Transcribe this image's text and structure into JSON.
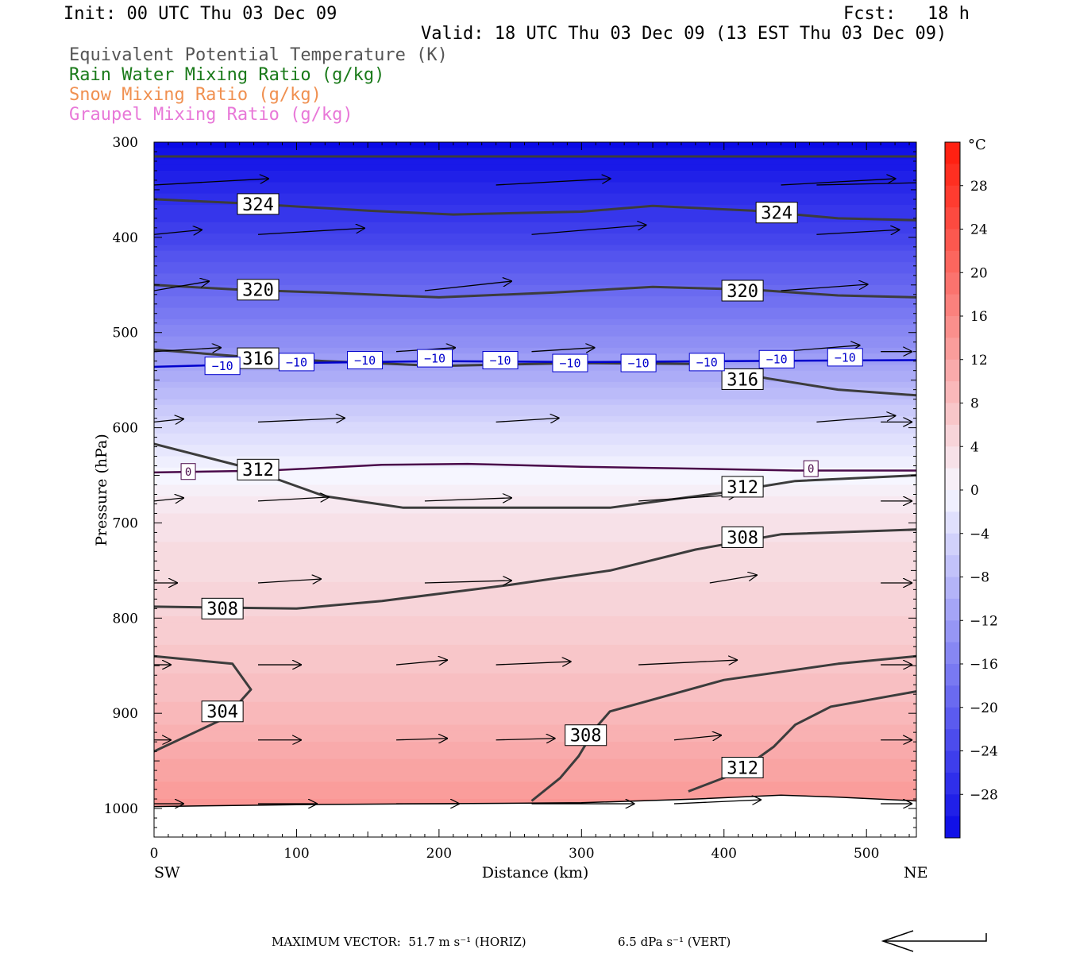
{
  "header": {
    "init": "Init: 00 UTC Thu 03 Dec 09",
    "fcst": "Fcst:   18 h",
    "valid": "Valid: 18 UTC Thu 03 Dec 09 (13 EST Thu 03 Dec 09)",
    "legend": [
      {
        "label": "Equivalent Potential Temperature (K)",
        "color": "#555555"
      },
      {
        "label": "Rain Water Mixing Ratio (g/kg)",
        "color": "#1a7a1a"
      },
      {
        "label": "Snow Mixing Ratio (g/kg)",
        "color": "#f09050"
      },
      {
        "label": "Graupel Mixing Ratio (g/kg)",
        "color": "#e878d8"
      }
    ]
  },
  "footer": {
    "max_vector_horiz": "MAXIMUM VECTOR:  51.7 m s⁻¹ (HORIZ)",
    "max_vector_vert": "6.5 dPa s⁻¹ (VERT)"
  },
  "chart_data": {
    "type": "heatmap",
    "title": "",
    "xlabel": "Distance (km)",
    "ylabel": "Pressure (hPa)",
    "xlim": [
      0,
      535
    ],
    "ylim": [
      1030,
      300
    ],
    "x_ticks": [
      0,
      100,
      200,
      300,
      400,
      500
    ],
    "y_ticks": [
      300,
      400,
      500,
      600,
      700,
      800,
      900,
      1000
    ],
    "x_left_label": "SW",
    "x_right_label": "NE",
    "colorbar": {
      "unit": "°C",
      "tick_labels": [
        "28",
        "24",
        "20",
        "16",
        "12",
        "8",
        "4",
        "0",
        "−4",
        "−8",
        "−12",
        "−16",
        "−20",
        "−24",
        "−28"
      ],
      "tick_values": [
        28,
        24,
        20,
        16,
        12,
        8,
        4,
        0,
        -4,
        -8,
        -12,
        -16,
        -20,
        -24,
        -28
      ],
      "range": [
        -32,
        32
      ],
      "cold_color": "#0a0ae6",
      "warm_color": "#ff1a0a",
      "neutral_color": "#f6f6ff"
    },
    "temperature_profile": {
      "pressure": [
        300,
        400,
        500,
        600,
        650,
        700,
        800,
        900,
        1000
      ],
      "temperature": [
        -32,
        -24,
        -15,
        -4,
        0,
        3,
        5.5,
        9,
        14
      ]
    },
    "theta_e_contours": [
      {
        "value": 324,
        "points": [
          [
            0,
            315
          ],
          [
            535,
            315
          ]
        ]
      },
      {
        "value": 324,
        "points": [
          [
            0,
            360
          ],
          [
            60,
            364
          ],
          [
            150,
            372
          ],
          [
            210,
            376
          ],
          [
            300,
            373
          ],
          [
            350,
            367
          ],
          [
            420,
            372
          ],
          [
            480,
            380
          ],
          [
            535,
            382
          ]
        ]
      },
      {
        "value": 320,
        "points": [
          [
            0,
            450
          ],
          [
            60,
            455
          ],
          [
            120,
            458
          ],
          [
            200,
            463
          ],
          [
            280,
            458
          ],
          [
            350,
            452
          ],
          [
            420,
            455
          ],
          [
            480,
            461
          ],
          [
            535,
            463
          ]
        ]
      },
      {
        "value": 316,
        "points": [
          [
            0,
            518
          ],
          [
            60,
            525
          ],
          [
            120,
            530
          ],
          [
            200,
            535
          ],
          [
            300,
            532
          ],
          [
            380,
            533
          ],
          [
            430,
            548
          ],
          [
            480,
            560
          ],
          [
            535,
            566
          ]
        ]
      },
      {
        "value": 312,
        "points": [
          [
            0,
            617
          ],
          [
            60,
            640
          ],
          [
            120,
            672
          ],
          [
            175,
            684
          ],
          [
            250,
            684
          ],
          [
            320,
            684
          ],
          [
            400,
            668
          ],
          [
            450,
            656
          ],
          [
            535,
            650
          ]
        ]
      },
      {
        "value": 308,
        "points": [
          [
            0,
            788
          ],
          [
            100,
            790
          ],
          [
            160,
            782
          ],
          [
            250,
            765
          ],
          [
            320,
            750
          ],
          [
            380,
            728
          ],
          [
            440,
            712
          ],
          [
            535,
            707
          ]
        ]
      },
      {
        "value": 304,
        "points": [
          [
            0,
            840
          ],
          [
            55,
            848
          ],
          [
            68,
            875
          ],
          [
            50,
            905
          ],
          [
            0,
            940
          ]
        ]
      },
      {
        "value": 308,
        "points": [
          [
            265,
            992
          ],
          [
            285,
            968
          ],
          [
            298,
            945
          ],
          [
            310,
            915
          ],
          [
            320,
            898
          ],
          [
            400,
            865
          ],
          [
            480,
            848
          ],
          [
            535,
            840
          ]
        ]
      },
      {
        "value": 312,
        "points": [
          [
            375,
            982
          ],
          [
            410,
            962
          ],
          [
            435,
            935
          ],
          [
            450,
            912
          ],
          [
            475,
            893
          ],
          [
            535,
            877
          ]
        ]
      }
    ],
    "theta_e_labels": [
      {
        "text": "324",
        "x": 73,
        "p": 365
      },
      {
        "text": "324",
        "x": 437,
        "p": 374
      },
      {
        "text": "320",
        "x": 73,
        "p": 455
      },
      {
        "text": "320",
        "x": 413,
        "p": 456
      },
      {
        "text": "316",
        "x": 73,
        "p": 527
      },
      {
        "text": "316",
        "x": 413,
        "p": 549
      },
      {
        "text": "312",
        "x": 73,
        "p": 644
      },
      {
        "text": "312",
        "x": 413,
        "p": 662
      },
      {
        "text": "308",
        "x": 413,
        "p": 715
      },
      {
        "text": "308",
        "x": 48,
        "p": 790
      },
      {
        "text": "304",
        "x": 48,
        "p": 898
      },
      {
        "text": "308",
        "x": 303,
        "p": 923
      },
      {
        "text": "312",
        "x": 413,
        "p": 957
      }
    ],
    "isotherms": [
      {
        "value": -10,
        "color": "#0000cc",
        "points": [
          [
            0,
            536
          ],
          [
            100,
            532
          ],
          [
            200,
            530
          ],
          [
            300,
            531
          ],
          [
            400,
            530
          ],
          [
            535,
            529
          ]
        ]
      },
      {
        "value": 0,
        "color": "#4a0a4a",
        "points": [
          [
            0,
            647
          ],
          [
            80,
            645
          ],
          [
            160,
            639
          ],
          [
            220,
            638
          ],
          [
            300,
            641
          ],
          [
            380,
            643
          ],
          [
            450,
            645
          ],
          [
            535,
            645
          ]
        ]
      }
    ],
    "isotherm_labels": [
      {
        "text": "−10",
        "x": 48,
        "p": 535
      },
      {
        "text": "−10",
        "x": 100,
        "p": 531
      },
      {
        "text": "−10",
        "x": 148,
        "p": 529
      },
      {
        "text": "−10",
        "x": 197,
        "p": 527
      },
      {
        "text": "−10",
        "x": 243,
        "p": 529
      },
      {
        "text": "−10",
        "x": 292,
        "p": 532
      },
      {
        "text": "−10",
        "x": 340,
        "p": 532
      },
      {
        "text": "−10",
        "x": 388,
        "p": 531
      },
      {
        "text": "−10",
        "x": 437,
        "p": 528
      },
      {
        "text": "−10",
        "x": 485,
        "p": 526
      },
      {
        "text": "0",
        "x": 24,
        "p": 646
      },
      {
        "text": "0",
        "x": 461,
        "p": 643
      }
    ],
    "surface_pressure": {
      "points": [
        [
          0,
          998
        ],
        [
          100,
          996
        ],
        [
          200,
          995
        ],
        [
          300,
          994
        ],
        [
          380,
          990
        ],
        [
          440,
          986
        ],
        [
          480,
          988
        ],
        [
          535,
          992
        ]
      ]
    },
    "wind_vectors": [
      {
        "p": 345,
        "cols": [
          [
            0,
            145,
            -8
          ],
          [
            240,
            145,
            -8
          ],
          [
            440,
            145,
            -8
          ],
          [
            465,
            180,
            -4
          ]
        ]
      },
      {
        "p": 397,
        "cols": [
          [
            0,
            61,
            -6
          ],
          [
            73,
            135,
            -8
          ],
          [
            265,
            145,
            -12
          ],
          [
            465,
            105,
            -6
          ]
        ]
      },
      {
        "p": 456,
        "cols": [
          [
            0,
            70,
            -12
          ],
          [
            190,
            110,
            -12
          ],
          [
            440,
            110,
            -8
          ]
        ]
      },
      {
        "p": 520,
        "cols": [
          [
            0,
            85,
            -5
          ],
          [
            170,
            75,
            -5
          ],
          [
            265,
            80,
            -5
          ],
          [
            440,
            100,
            -8
          ],
          [
            510,
            40,
            0
          ]
        ]
      },
      {
        "p": 594,
        "cols": [
          [
            0,
            38,
            -4
          ],
          [
            73,
            110,
            -5
          ],
          [
            240,
            80,
            -5
          ],
          [
            465,
            100,
            -8
          ],
          [
            510,
            40,
            0
          ]
        ]
      },
      {
        "p": 677,
        "cols": [
          [
            0,
            38,
            -4
          ],
          [
            73,
            90,
            -5
          ],
          [
            190,
            110,
            -4
          ],
          [
            340,
            125,
            -8
          ],
          [
            510,
            40,
            0
          ]
        ]
      },
      {
        "p": 763,
        "cols": [
          [
            0,
            30,
            0
          ],
          [
            73,
            80,
            -5
          ],
          [
            190,
            110,
            -3
          ],
          [
            390,
            60,
            -10
          ],
          [
            510,
            40,
            0
          ]
        ]
      },
      {
        "p": 849,
        "cols": [
          [
            0,
            22,
            0
          ],
          [
            73,
            55,
            0
          ],
          [
            170,
            65,
            -6
          ],
          [
            240,
            95,
            -4
          ],
          [
            340,
            125,
            -6
          ],
          [
            510,
            40,
            0
          ]
        ]
      },
      {
        "p": 928,
        "cols": [
          [
            0,
            22,
            0
          ],
          [
            73,
            55,
            0
          ],
          [
            170,
            65,
            -2
          ],
          [
            240,
            75,
            -2
          ],
          [
            365,
            60,
            -6
          ],
          [
            510,
            40,
            0
          ]
        ]
      },
      {
        "p": 995,
        "cols": [
          [
            0,
            38,
            0
          ],
          [
            73,
            75,
            0
          ],
          [
            170,
            80,
            0
          ],
          [
            265,
            130,
            0
          ],
          [
            365,
            110,
            -5
          ],
          [
            510,
            40,
            0
          ]
        ]
      }
    ]
  }
}
